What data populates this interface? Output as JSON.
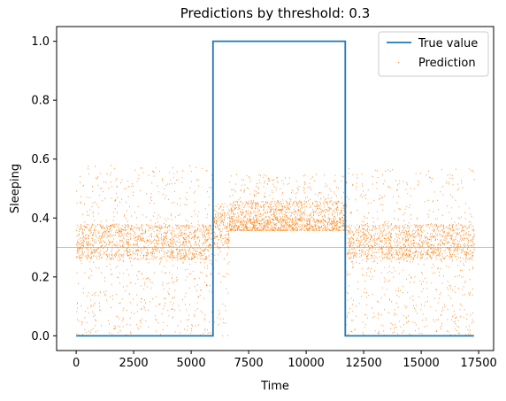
{
  "chart_data": {
    "type": "line",
    "title": "Predictions by threshold: 0.3",
    "xlabel": "Time",
    "ylabel": "Sleeping",
    "xlim": [
      -850,
      18150
    ],
    "ylim": [
      -0.05,
      1.05
    ],
    "xticks": [
      0,
      2500,
      5000,
      7500,
      10000,
      12500,
      15000,
      17500
    ],
    "yticks": [
      0.0,
      0.2,
      0.4,
      0.6,
      0.8,
      1.0
    ],
    "xtick_labels": [
      "0",
      "2500",
      "5000",
      "7500",
      "10000",
      "12500",
      "15000",
      "17500"
    ],
    "ytick_labels": [
      "0.0",
      "0.2",
      "0.4",
      "0.6",
      "0.8",
      "1.0"
    ],
    "threshold": 0.3,
    "legend_position": "top-right",
    "grid": false,
    "series": [
      {
        "name": "True value",
        "style": "step-line",
        "color": "#1f77b4",
        "x": [
          0,
          5950,
          5950,
          11700,
          11700,
          17300
        ],
        "y": [
          0,
          0,
          1,
          1,
          0,
          0
        ]
      },
      {
        "name": "Prediction",
        "style": "scatter-dots",
        "color": "#ff7f0e",
        "x_range": [
          0,
          17300
        ],
        "segments": [
          {
            "x": [
              0,
              5950
            ],
            "y_min": 0.0,
            "y_max": 0.58,
            "typical": 0.32
          },
          {
            "x": [
              5950,
              6650
            ],
            "y_min": 0.0,
            "y_max": 0.45,
            "typical": 0.36
          },
          {
            "x": [
              6650,
              11750
            ],
            "y_min": 0.36,
            "y_max": 0.55,
            "typical": 0.4
          },
          {
            "x": [
              11750,
              17300
            ],
            "y_min": 0.0,
            "y_max": 0.57,
            "typical": 0.32
          }
        ]
      }
    ],
    "threshold_line_color": "#b0c4d8"
  }
}
